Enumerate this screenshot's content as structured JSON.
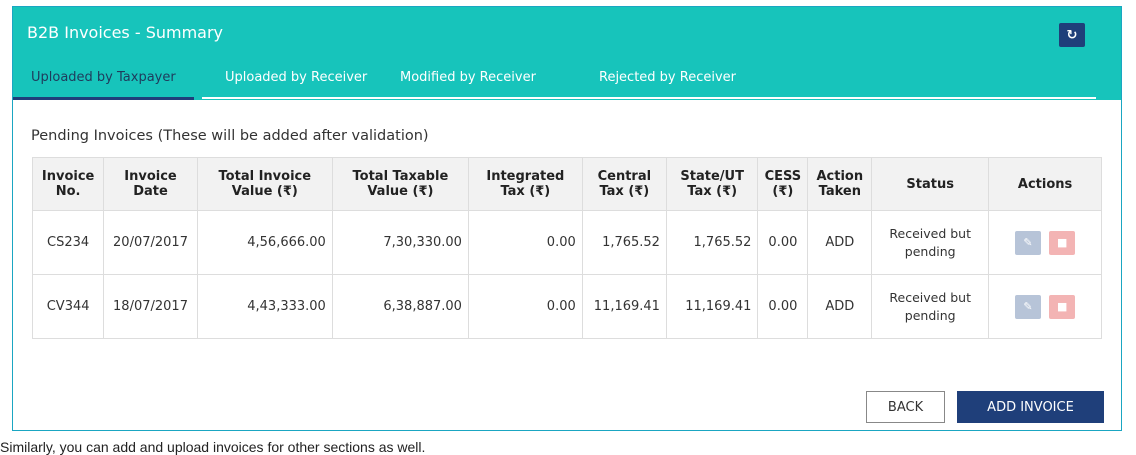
{
  "header": {
    "title": "B2B Invoices - Summary",
    "refresh_icon": "refresh-icon"
  },
  "tabs": [
    {
      "label": "Uploaded by Taxpayer",
      "active": true
    },
    {
      "label": "Uploaded by Receiver",
      "active": false
    },
    {
      "label": "Modified by Receiver",
      "active": false
    },
    {
      "label": "Rejected by Receiver",
      "active": false
    }
  ],
  "section_title": "Pending Invoices (These will be added after validation)",
  "table": {
    "headers": [
      "Invoice No.",
      "Invoice Date",
      "Total Invoice Value (₹)",
      "Total Taxable Value (₹)",
      "Integrated Tax (₹)",
      "Central Tax (₹)",
      "State/UT Tax (₹)",
      "CESS (₹)",
      "Action Taken",
      "Status",
      "Actions"
    ],
    "rows": [
      [
        "CS234",
        "20/07/2017",
        "4,56,666.00",
        "7,30,330.00",
        "0.00",
        "1,765.52",
        "1,765.52",
        "0.00",
        "ADD",
        "Received but pending"
      ],
      [
        "CV344",
        "18/07/2017",
        "4,43,333.00",
        "6,38,887.00",
        "0.00",
        "11,169.41",
        "11,169.41",
        "0.00",
        "ADD",
        "Received but pending"
      ]
    ]
  },
  "buttons": {
    "back": "BACK",
    "add_invoice": "ADD INVOICE"
  },
  "caption": "Similarly, you can add and upload invoices for other sections as well.",
  "colors": {
    "header_bg": "#17c4bb",
    "primary": "#1f3f7a",
    "edit": "#b7c4d8",
    "delete": "#f3b4b4"
  }
}
